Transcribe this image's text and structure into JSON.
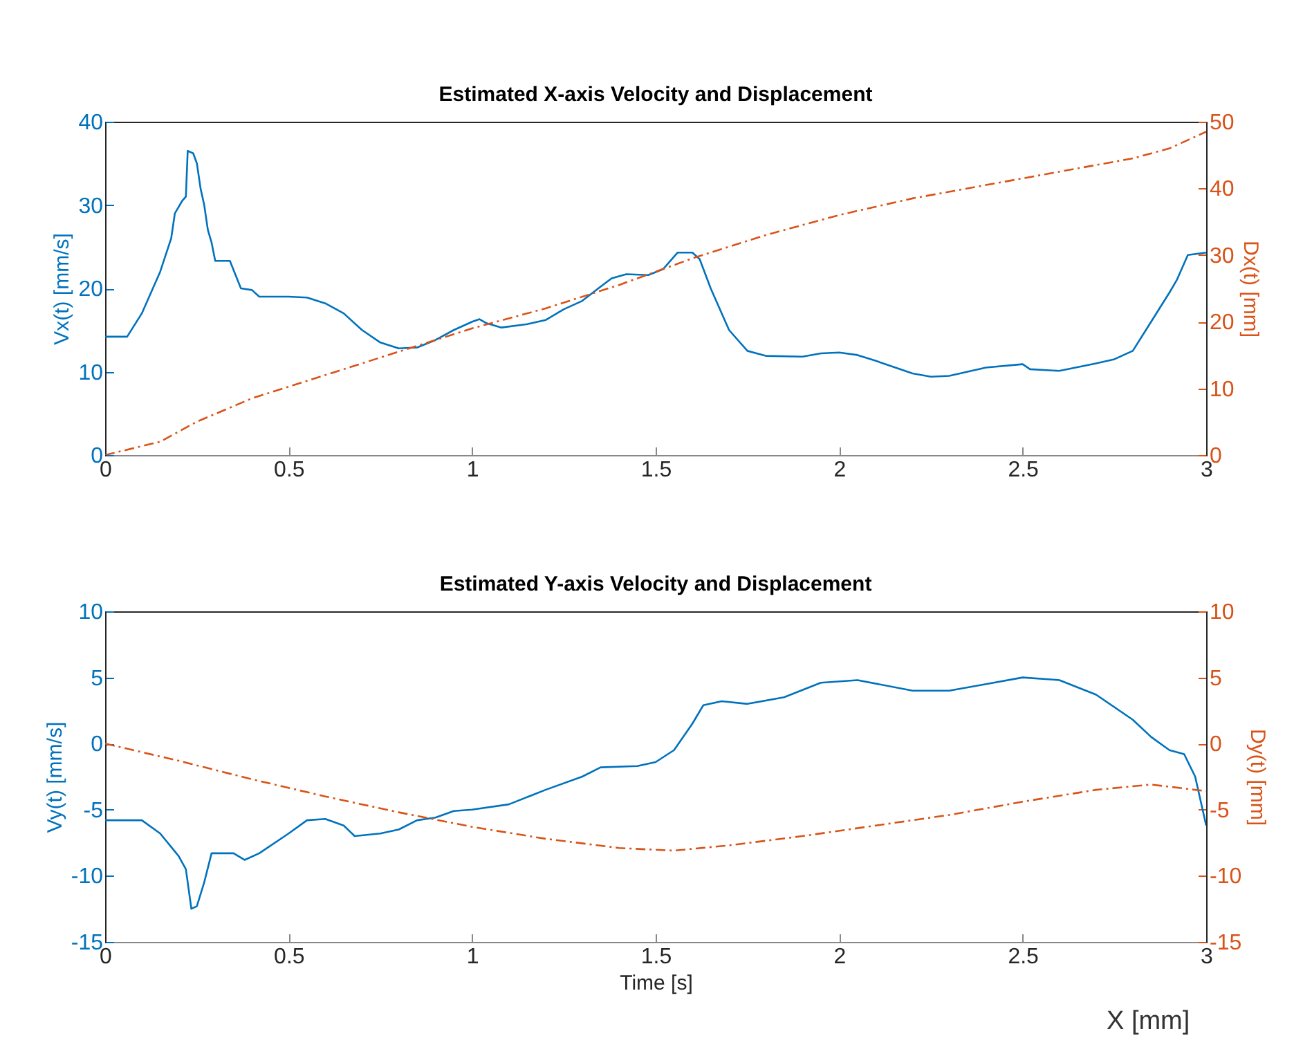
{
  "chart_data": [
    {
      "type": "line",
      "title": "Estimated X-axis Velocity and Displacement",
      "ylabel": "Vx(t) [mm/s]",
      "y2label": "Dx(t) [mm]",
      "xlim": [
        0,
        3
      ],
      "xticks": [
        0,
        0.5,
        1,
        1.5,
        2,
        2.5,
        3
      ],
      "ylim": [
        0,
        40
      ],
      "yticks": [
        0,
        10,
        20,
        30,
        40
      ],
      "y2lim": [
        0,
        50
      ],
      "y2ticks": [
        0,
        10,
        20,
        30,
        40,
        50
      ],
      "grid": false,
      "series": [
        {
          "color": "#0072bd",
          "line_style": "solid",
          "x": [
            0,
            0.06,
            0.1,
            0.15,
            0.18,
            0.19,
            0.21,
            0.22,
            0.225,
            0.24,
            0.25,
            0.26,
            0.27,
            0.275,
            0.28,
            0.29,
            0.3,
            0.34,
            0.37,
            0.4,
            0.42,
            0.5,
            0.55,
            0.6,
            0.65,
            0.7,
            0.75,
            0.8,
            0.85,
            0.9,
            0.95,
            1.0,
            1.02,
            1.04,
            1.08,
            1.15,
            1.2,
            1.25,
            1.3,
            1.35,
            1.38,
            1.42,
            1.48,
            1.52,
            1.56,
            1.6,
            1.62,
            1.65,
            1.7,
            1.75,
            1.8,
            1.9,
            1.95,
            2.0,
            2.05,
            2.1,
            2.2,
            2.25,
            2.3,
            2.4,
            2.5,
            2.52,
            2.6,
            2.7,
            2.75,
            2.8,
            2.85,
            2.9,
            2.92,
            2.95,
            3.0
          ],
          "values": [
            14.2,
            14.2,
            17,
            22,
            26,
            29,
            30.5,
            31,
            36.5,
            36.2,
            35,
            32,
            30,
            28.5,
            27,
            25.5,
            23.3,
            23.3,
            20,
            19.8,
            19,
            19,
            18.9,
            18.2,
            17,
            15,
            13.5,
            12.8,
            12.9,
            13.8,
            15,
            16,
            16.3,
            15.8,
            15.3,
            15.7,
            16.2,
            17.5,
            18.5,
            20.2,
            21.2,
            21.7,
            21.6,
            22.3,
            24.3,
            24.3,
            23.5,
            20,
            15,
            12.5,
            11.9,
            11.8,
            12.2,
            12.3,
            12,
            11.3,
            9.8,
            9.4,
            9.5,
            10.5,
            10.9,
            10.3,
            10.1,
            11,
            11.5,
            12.5,
            16,
            19.5,
            21,
            24,
            24.3
          ]
        },
        {
          "color": "#d95319",
          "line_style": "dashed",
          "axis": "y2",
          "x": [
            0,
            0.15,
            0.25,
            0.4,
            0.6,
            0.8,
            1.0,
            1.2,
            1.4,
            1.6,
            1.8,
            2.0,
            2.2,
            2.4,
            2.6,
            2.8,
            2.9,
            3.0
          ],
          "values": [
            0,
            2,
            5,
            8.5,
            12,
            15.5,
            19,
            22,
            25.5,
            29.5,
            33,
            36,
            38.5,
            40.5,
            42.5,
            44.5,
            46,
            48.5
          ]
        }
      ]
    },
    {
      "type": "line",
      "title": "Estimated Y-axis Velocity and Displacement",
      "xlabel": "Time [s]",
      "ylabel": "Vy(t) [mm/s]",
      "y2label": "Dy(t) [mm]",
      "xlim": [
        0,
        3
      ],
      "xticks": [
        0,
        0.5,
        1,
        1.5,
        2,
        2.5,
        3
      ],
      "ylim": [
        -15,
        10
      ],
      "yticks": [
        -15,
        -10,
        -5,
        0,
        5,
        10
      ],
      "y2lim": [
        -15,
        10
      ],
      "y2ticks": [
        -15,
        -10,
        -5,
        0,
        5,
        10
      ],
      "grid": false,
      "annotations": [
        "X [mm]"
      ],
      "series": [
        {
          "color": "#0072bd",
          "line_style": "solid",
          "x": [
            0,
            0.1,
            0.15,
            0.2,
            0.22,
            0.235,
            0.25,
            0.27,
            0.29,
            0.35,
            0.38,
            0.42,
            0.5,
            0.55,
            0.6,
            0.65,
            0.68,
            0.75,
            0.8,
            0.85,
            0.9,
            0.95,
            1.0,
            1.1,
            1.2,
            1.3,
            1.35,
            1.45,
            1.5,
            1.55,
            1.6,
            1.63,
            1.68,
            1.75,
            1.85,
            1.95,
            2.05,
            2.2,
            2.3,
            2.4,
            2.5,
            2.6,
            2.7,
            2.8,
            2.85,
            2.9,
            2.94,
            2.97,
            3.0
          ],
          "values": [
            -5.8,
            -5.8,
            -6.8,
            -8.5,
            -9.5,
            -12.5,
            -12.3,
            -10.5,
            -8.3,
            -8.3,
            -8.8,
            -8.3,
            -6.8,
            -5.8,
            -5.7,
            -6.2,
            -7,
            -6.8,
            -6.5,
            -5.8,
            -5.6,
            -5.1,
            -5,
            -4.6,
            -3.5,
            -2.5,
            -1.8,
            -1.7,
            -1.4,
            -0.5,
            1.5,
            2.9,
            3.2,
            3,
            3.5,
            4.6,
            4.8,
            4,
            4,
            4.5,
            5,
            4.8,
            3.7,
            1.8,
            0.5,
            -0.5,
            -0.8,
            -2.5,
            -6.2
          ]
        },
        {
          "color": "#d95319",
          "line_style": "dashed",
          "axis": "y2",
          "x": [
            0,
            0.2,
            0.4,
            0.6,
            0.8,
            1.0,
            1.2,
            1.4,
            1.55,
            1.7,
            1.9,
            2.1,
            2.3,
            2.5,
            2.7,
            2.85,
            3.0
          ],
          "values": [
            0,
            -1.3,
            -2.7,
            -4,
            -5.2,
            -6.3,
            -7.2,
            -7.9,
            -8.1,
            -7.7,
            -7.0,
            -6.2,
            -5.4,
            -4.4,
            -3.5,
            -3.1,
            -3.6
          ]
        }
      ]
    }
  ]
}
